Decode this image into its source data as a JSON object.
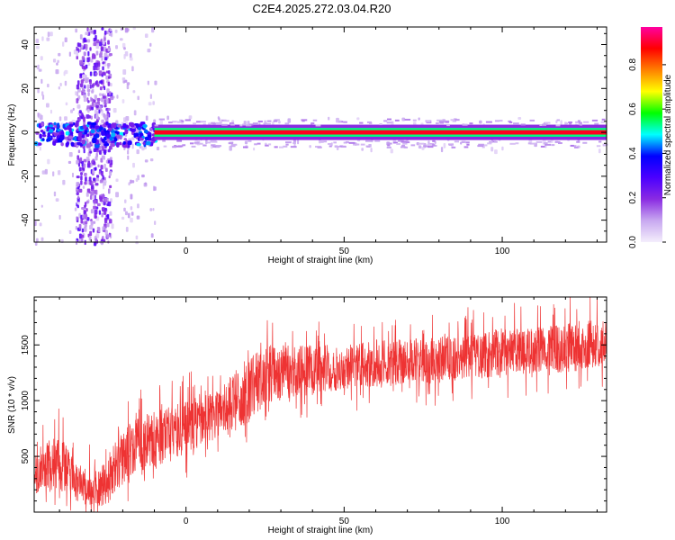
{
  "title": "C2E4.2025.272.03.04.R20",
  "chart_data": [
    {
      "type": "heatmap",
      "title": "C2E4.2025.272.03.04.R20",
      "xlabel": "Height of straight line (km)",
      "ylabel": "Frequency (Hz)",
      "xlim": [
        -48,
        133
      ],
      "ylim": [
        -50,
        48
      ],
      "x_ticks": [
        0,
        50,
        100
      ],
      "y_ticks": [
        -40,
        -20,
        0,
        20,
        40
      ],
      "grid": false,
      "colorbar": {
        "label": "Normalized spectral amplitude",
        "range": [
          0,
          0.97
        ],
        "ticks": [
          0.0,
          0.2,
          0.4,
          0.6,
          0.8
        ],
        "colormap": [
          "#f4eefc",
          "#c8a8f0",
          "#8a2be2",
          "#4b00ff",
          "#0000ff",
          "#00ffff",
          "#00ff00",
          "#ffff00",
          "#ff8000",
          "#ff0000",
          "#ff00a0"
        ]
      },
      "description_values": {
        "main_band_frequency_hz": 0,
        "main_band_height_range_km": [
          -10,
          133
        ],
        "noisy_column_height_range_km": [
          -35,
          -24
        ],
        "noisy_column_frequency_range_hz": [
          -50,
          48
        ]
      }
    },
    {
      "type": "line",
      "xlabel": "Height of straight line (km)",
      "ylabel": "SNR (10 * v/v)",
      "xlim": [
        -48,
        133
      ],
      "ylim": [
        0,
        1930
      ],
      "x_ticks": [
        0,
        50,
        100
      ],
      "y_ticks": [
        500,
        1000,
        1500
      ],
      "grid": false,
      "series": [
        {
          "color": "#ee3333",
          "envelope": {
            "x": [
              -48,
              -40,
              -35,
              -30,
              -25,
              -20,
              -15,
              -10,
              -5,
              0,
              5,
              10,
              15,
              20,
              25,
              30,
              40,
              50,
              60,
              70,
              80,
              90,
              100,
              110,
              120,
              133
            ],
            "low": [
              150,
              200,
              100,
              50,
              50,
              250,
              350,
              400,
              450,
              500,
              600,
              650,
              700,
              800,
              950,
              1000,
              1050,
              1100,
              1100,
              1150,
              1150,
              1200,
              1200,
              1250,
              1250,
              1300
            ],
            "high": [
              550,
              700,
              450,
              350,
              500,
              750,
              850,
              900,
              950,
              1000,
              1050,
              1100,
              1250,
              1400,
              1500,
              1500,
              1500,
              1500,
              1550,
              1550,
              1600,
              1600,
              1650,
              1650,
              1700,
              1750
            ]
          }
        }
      ]
    }
  ]
}
